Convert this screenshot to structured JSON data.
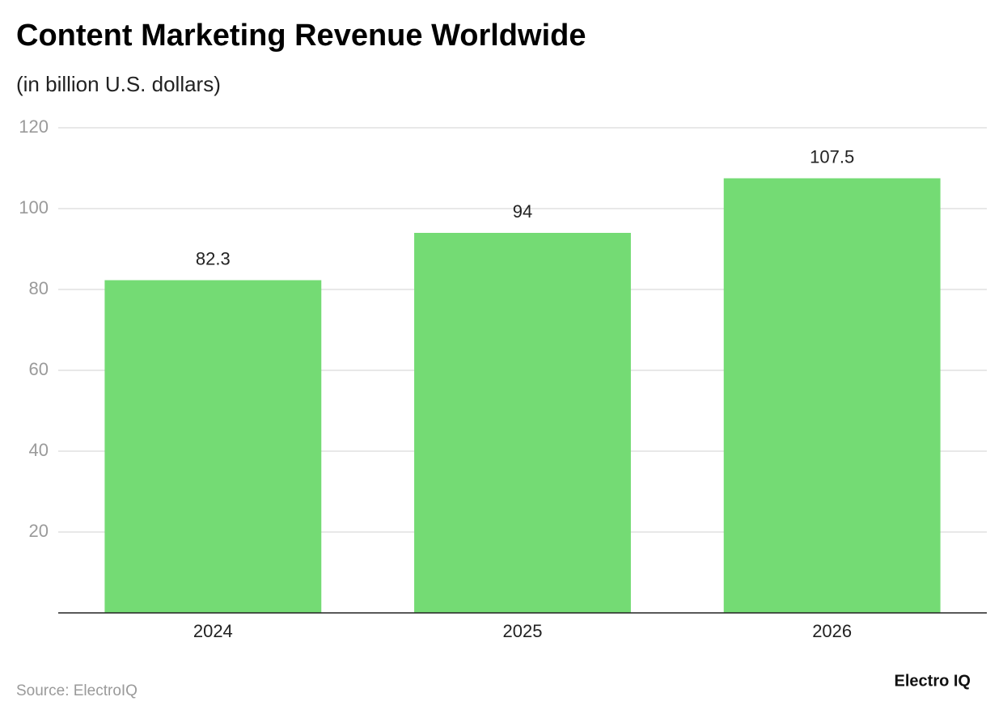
{
  "chart_data": {
    "type": "bar",
    "title": "Content Marketing Revenue Worldwide",
    "subtitle": "(in billion U.S. dollars)",
    "categories": [
      "2024",
      "2025",
      "2026"
    ],
    "values": [
      82.3,
      94,
      107.5
    ],
    "color": "#74db74",
    "ylim": [
      0,
      120
    ],
    "yticks": [
      20,
      40,
      60,
      80,
      100,
      120
    ],
    "grid": true,
    "source": "Source: ElectroIQ",
    "brand": "Electro IQ"
  }
}
